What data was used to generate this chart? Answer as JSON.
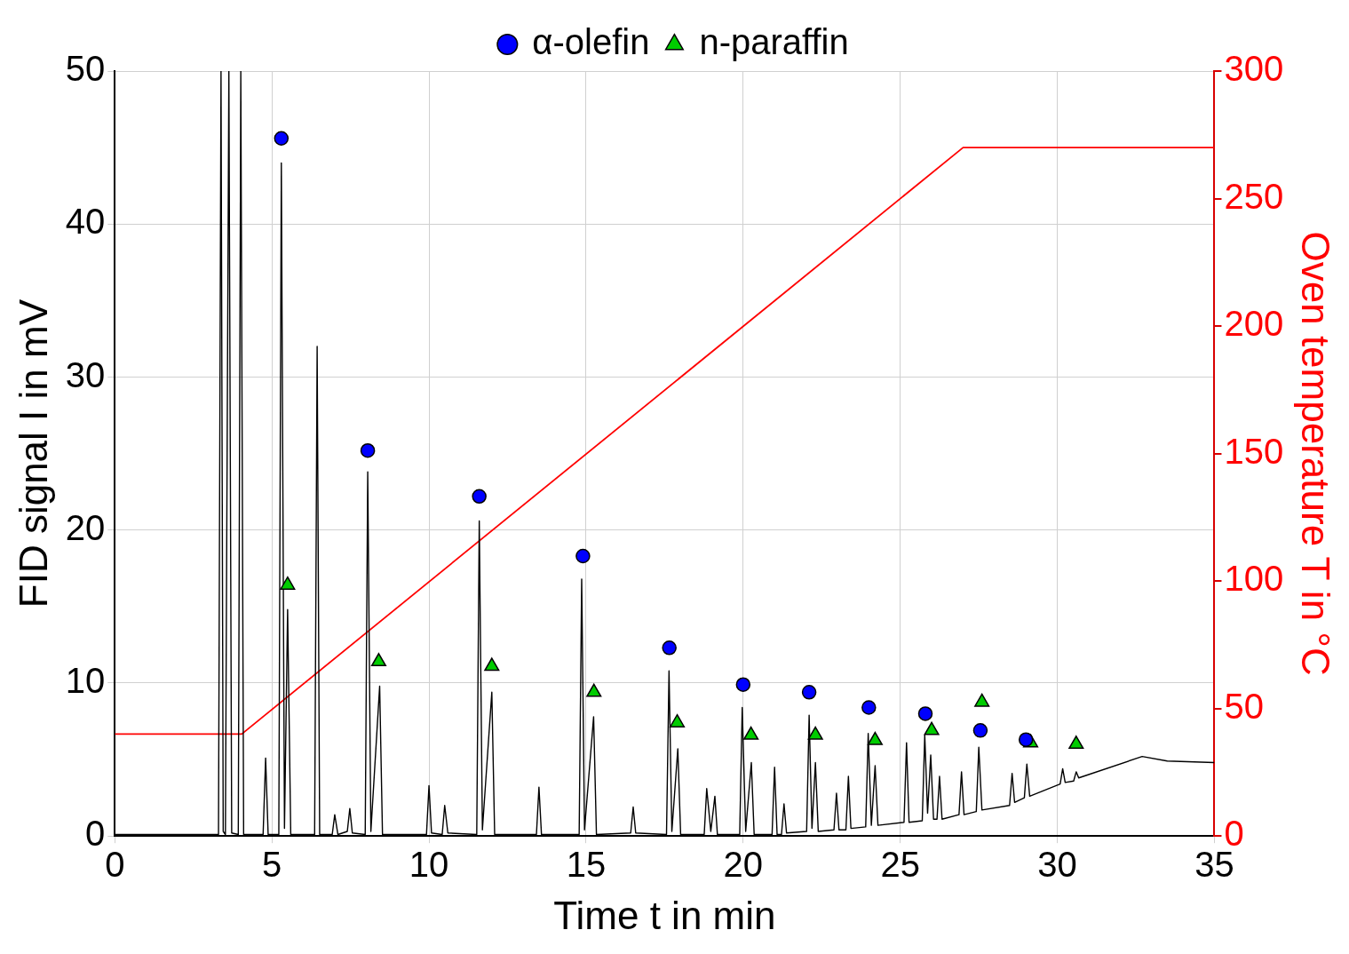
{
  "chart_data": {
    "type": "line",
    "xlabel": "Time t in min",
    "ylabel": "FID signal I in mV",
    "y2label": "Oven temperature T in °C",
    "xlim": [
      0,
      35
    ],
    "xticks": [
      0,
      5,
      10,
      15,
      20,
      25,
      30,
      35
    ],
    "ylim": [
      0,
      50
    ],
    "yticks": [
      0,
      10,
      20,
      30,
      40,
      50
    ],
    "y2lim": [
      0,
      300
    ],
    "y2ticks": [
      0,
      50,
      100,
      150,
      200,
      250,
      300
    ],
    "grid": true,
    "legend": "top",
    "series": [
      {
        "color": "#000000",
        "marker": "none",
        "x": [
          0,
          3.3,
          3.38,
          3.45,
          3.52,
          3.63,
          3.72,
          3.93,
          4.01,
          4.1,
          4.72,
          4.8,
          4.88,
          5.22,
          5.3,
          5.4,
          5.5,
          5.6,
          6.36,
          6.44,
          6.52,
          6.92,
          7.0,
          7.1,
          7.4,
          7.48,
          7.56,
          7.97,
          8.05,
          8.15,
          8.43,
          8.52,
          9.92,
          10.0,
          10.08,
          10.42,
          10.5,
          10.6,
          11.52,
          11.6,
          11.7,
          12.0,
          12.09,
          13.42,
          13.5,
          13.58,
          14.78,
          14.86,
          14.95,
          15.24,
          15.33,
          16.42,
          16.5,
          16.58,
          17.56,
          17.64,
          17.73,
          17.92,
          18.01,
          18.76,
          18.84,
          18.97,
          19.1,
          19.18,
          19.89,
          19.97,
          20.08,
          20.26,
          20.35,
          20.92,
          21.0,
          21.08,
          21.22,
          21.3,
          21.38,
          22.02,
          22.1,
          22.19,
          22.3,
          22.39,
          22.89,
          22.97,
          23.05,
          23.27,
          23.35,
          23.43,
          23.9,
          23.98,
          24.08,
          24.2,
          24.29,
          25.12,
          25.2,
          25.28,
          25.7,
          25.78,
          25.87,
          25.97,
          26.06,
          26.17,
          26.25,
          26.33,
          26.87,
          26.95,
          27.03,
          27.42,
          27.5,
          27.6,
          28.48,
          28.56,
          28.64,
          28.95,
          29.03,
          29.12,
          30.09,
          30.17,
          30.25,
          30.52,
          30.6,
          30.68,
          32.7,
          33.5,
          35
        ],
        "values": [
          0.1,
          0.1,
          50,
          0.3,
          0.1,
          50,
          0.2,
          0.1,
          50,
          0.1,
          0.1,
          5.1,
          0.1,
          0.1,
          44,
          0.5,
          14.8,
          0.1,
          0.1,
          32,
          0.1,
          0.1,
          1.4,
          0.1,
          0.3,
          1.8,
          0.2,
          0.1,
          23.8,
          0.3,
          9.8,
          0.1,
          0.1,
          3.3,
          0.2,
          0.1,
          2.0,
          0.2,
          0.1,
          20.6,
          0.4,
          9.4,
          0.1,
          0.1,
          3.2,
          0.1,
          0.1,
          16.8,
          0.4,
          7.8,
          0.1,
          0.2,
          1.9,
          0.2,
          0.1,
          10.8,
          0.3,
          5.7,
          0.1,
          0.1,
          3.1,
          0.3,
          2.6,
          0.1,
          0.1,
          8.4,
          0.3,
          4.8,
          0.1,
          0.1,
          4.5,
          0.1,
          0.1,
          2.1,
          0.2,
          0.3,
          7.9,
          0.5,
          4.8,
          0.3,
          0.4,
          2.8,
          0.4,
          0.4,
          3.9,
          0.5,
          0.6,
          6.7,
          0.7,
          4.6,
          0.7,
          0.9,
          6.1,
          0.9,
          1.0,
          6.6,
          1.5,
          5.3,
          1.1,
          1.1,
          3.9,
          1.1,
          1.4,
          4.2,
          1.4,
          1.6,
          5.8,
          1.7,
          2.0,
          4.1,
          2.2,
          2.5,
          4.7,
          2.6,
          3.4,
          4.4,
          3.5,
          3.6,
          4.2,
          3.8,
          5.2,
          4.9,
          4.8
        ]
      },
      {
        "axis": "y2",
        "color": "#ff0000",
        "marker": "none",
        "x": [
          0,
          4.04,
          27,
          35
        ],
        "values": [
          40,
          40,
          270,
          270
        ]
      },
      {
        "type": "scatter",
        "name": "α-olefin",
        "color": "#0000ff",
        "marker": "circle",
        "x": [
          5.3,
          8.05,
          11.6,
          14.9,
          17.65,
          20.0,
          22.1,
          24.0,
          25.8,
          27.55,
          29.0
        ],
        "values": [
          45.6,
          25.2,
          22.2,
          18.3,
          12.3,
          9.9,
          9.4,
          8.4,
          8.0,
          6.9,
          6.3
        ]
      },
      {
        "type": "scatter",
        "name": "n-paraffin",
        "color": "#00cc00",
        "marker": "triangle",
        "x": [
          5.5,
          8.4,
          12.0,
          15.25,
          17.9,
          20.25,
          22.3,
          24.2,
          26.0,
          27.6,
          29.15,
          30.6
        ],
        "values": [
          16.4,
          11.4,
          11.1,
          9.4,
          7.4,
          6.6,
          6.6,
          6.25,
          6.9,
          8.75,
          6.1,
          6.0
        ]
      }
    ]
  }
}
